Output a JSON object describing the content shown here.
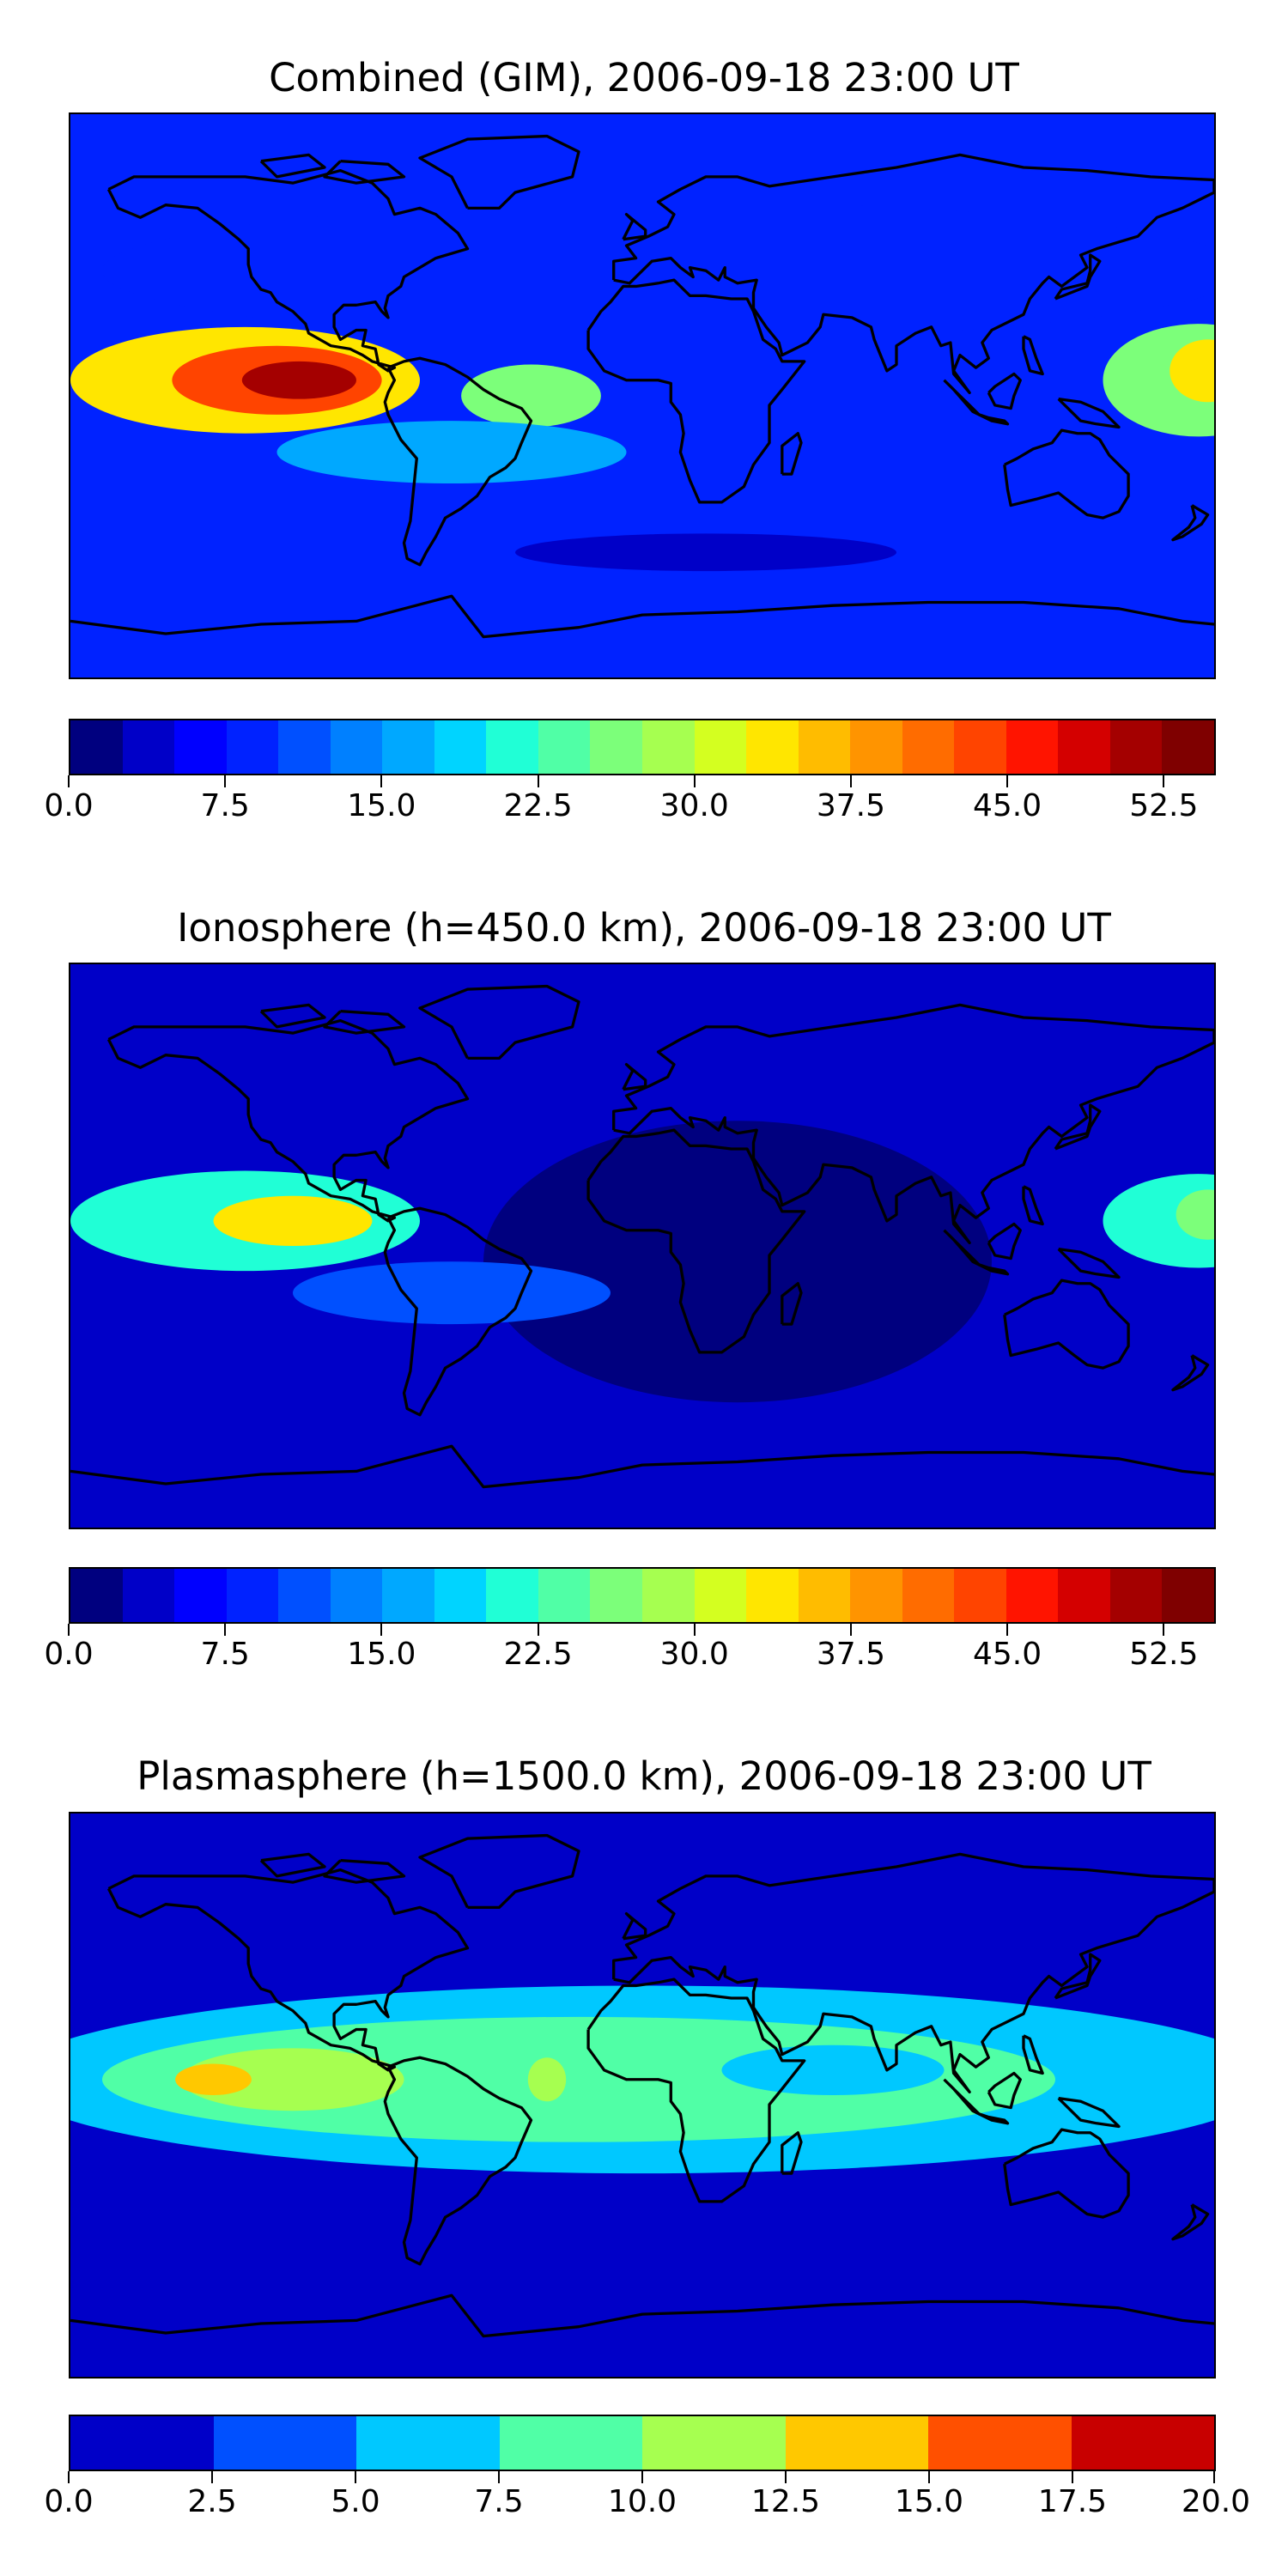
{
  "panels": [
    {
      "id": "combined",
      "title": "Combined (GIM), 2006-09-18 23:00 UT",
      "colorbar": {
        "vmin": 0.0,
        "vmax": 55.0,
        "colors": [
          "#00007f",
          "#0000c8",
          "#0000ff",
          "#0022ff",
          "#0050ff",
          "#0080ff",
          "#00a8ff",
          "#00d4ff",
          "#20ffd6",
          "#50ffa6",
          "#7cff7a",
          "#a6ff50",
          "#d4ff20",
          "#ffe600",
          "#ffbc00",
          "#ff9400",
          "#ff6c00",
          "#ff4400",
          "#ff1400",
          "#d40000",
          "#a40000",
          "#7f0000"
        ],
        "ticks": [
          "0.0",
          "7.5",
          "15.0",
          "22.5",
          "30.0",
          "37.5",
          "45.0",
          "52.5"
        ]
      },
      "blobs": [
        {
          "lon": -125,
          "lat": 5,
          "rx": 55,
          "ry": 17,
          "value": 33
        },
        {
          "lon": -115,
          "lat": 5,
          "rx": 33,
          "ry": 11,
          "value": 44
        },
        {
          "lon": -108,
          "lat": 5,
          "rx": 18,
          "ry": 6,
          "value": 50
        },
        {
          "lon": -35,
          "lat": 0,
          "rx": 22,
          "ry": 10,
          "value": 25
        },
        {
          "lon": 175,
          "lat": 5,
          "rx": 30,
          "ry": 18,
          "value": 25
        },
        {
          "lon": 178,
          "lat": 8,
          "rx": 12,
          "ry": 10,
          "value": 34
        },
        {
          "lon": -60,
          "lat": -18,
          "rx": 55,
          "ry": 10,
          "value": 15
        },
        {
          "lon": 10,
          "lat": 40,
          "rx": 180,
          "ry": 22,
          "value": 8
        },
        {
          "lon": 20,
          "lat": -50,
          "rx": 60,
          "ry": 6,
          "value": 3
        }
      ]
    },
    {
      "id": "ionosphere",
      "title": "Ionosphere  (h=450.0 km), 2006-09-18 23:00 UT",
      "colorbar": {
        "vmin": 0.0,
        "vmax": 55.0,
        "colors": [
          "#00007f",
          "#0000c8",
          "#0000ff",
          "#0022ff",
          "#0050ff",
          "#0080ff",
          "#00a8ff",
          "#00d4ff",
          "#20ffd6",
          "#50ffa6",
          "#7cff7a",
          "#a6ff50",
          "#d4ff20",
          "#ffe600",
          "#ffbc00",
          "#ff9400",
          "#ff6c00",
          "#ff4400",
          "#ff1400",
          "#d40000",
          "#a40000",
          "#7f0000"
        ],
        "ticks": [
          "0.0",
          "7.5",
          "15.0",
          "22.5",
          "30.0",
          "37.5",
          "45.0",
          "52.5"
        ]
      },
      "blobs": [
        {
          "lon": -125,
          "lat": 8,
          "rx": 55,
          "ry": 16,
          "value": 22
        },
        {
          "lon": -110,
          "lat": 8,
          "rx": 25,
          "ry": 8,
          "value": 33
        },
        {
          "lon": 175,
          "lat": 8,
          "rx": 30,
          "ry": 15,
          "value": 22
        },
        {
          "lon": 178,
          "lat": 10,
          "rx": 10,
          "ry": 8,
          "value": 27
        },
        {
          "lon": 30,
          "lat": -5,
          "rx": 80,
          "ry": 45,
          "value": 2
        },
        {
          "lon": -60,
          "lat": -15,
          "rx": 50,
          "ry": 10,
          "value": 11
        }
      ]
    },
    {
      "id": "plasmasphere",
      "title": "Plasmasphere (h=1500.0 km), 2006-09-18 23:00 UT",
      "colorbar": {
        "vmin": 0.0,
        "vmax": 20.0,
        "colors": [
          "#0000c8",
          "#0050ff",
          "#00c8ff",
          "#50ffa6",
          "#a6ff50",
          "#ffc800",
          "#ff5000",
          "#c80000"
        ],
        "ticks": [
          "0.0",
          "2.5",
          "5.0",
          "7.5",
          "10.0",
          "12.5",
          "15.0",
          "17.5",
          "20.0"
        ]
      },
      "blobs": [
        {
          "lon": 0,
          "lat": 5,
          "rx": 200,
          "ry": 30,
          "value": 6
        },
        {
          "lon": -20,
          "lat": 5,
          "rx": 150,
          "ry": 20,
          "value": 8.5
        },
        {
          "lon": -110,
          "lat": 5,
          "rx": 35,
          "ry": 10,
          "value": 11
        },
        {
          "lon": -135,
          "lat": 5,
          "rx": 12,
          "ry": 5,
          "value": 13.5
        },
        {
          "lon": -30,
          "lat": 5,
          "rx": 6,
          "ry": 7,
          "value": 11
        },
        {
          "lon": 60,
          "lat": 8,
          "rx": 35,
          "ry": 8,
          "value": 6.5
        }
      ]
    }
  ]
}
